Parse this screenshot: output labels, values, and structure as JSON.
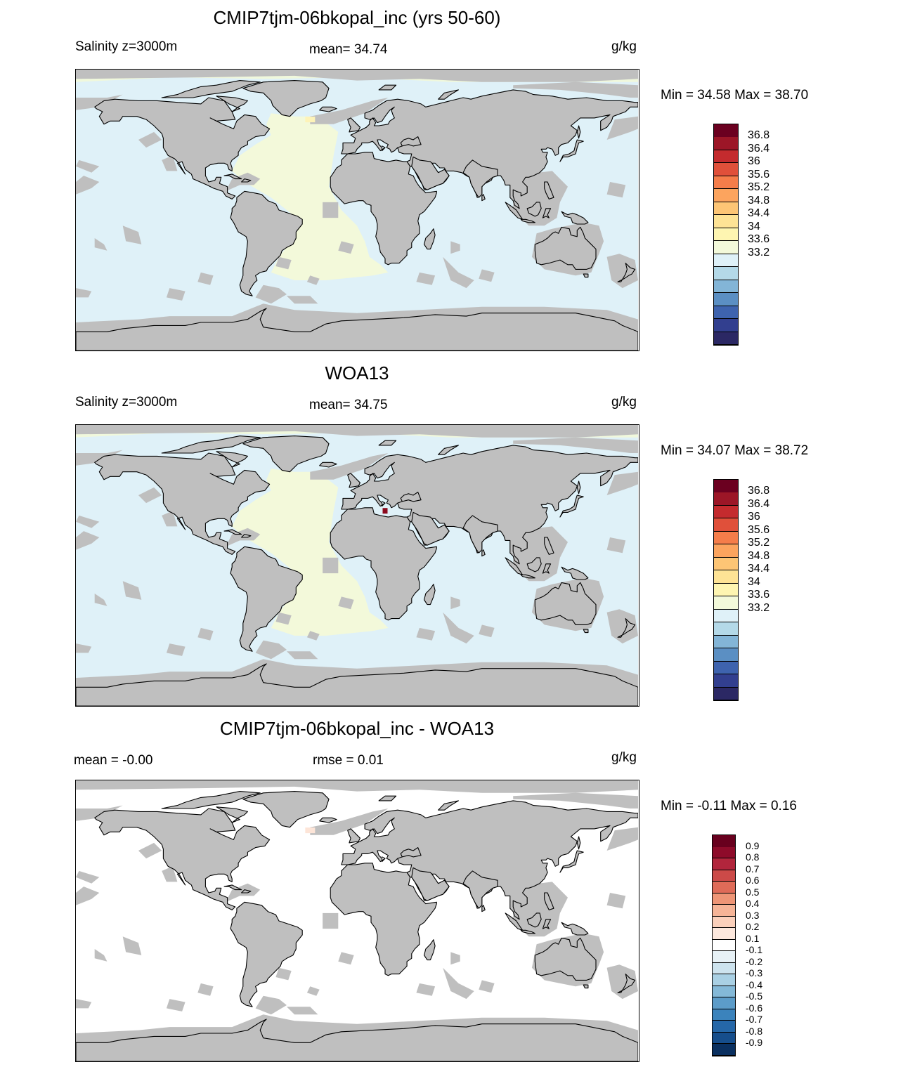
{
  "panels": [
    {
      "title": "CMIP7tjm-06bkopal_inc (yrs 50-60)",
      "left_text": "Salinity z=3000m",
      "center_text": "mean=  34.74",
      "units": "g/kg",
      "minmax": "Min =  34.58 Max =  38.70",
      "ocean_main_color": "#dff1f8",
      "atlantic_color": "#f3f9da",
      "arctic_color": "#f0f8dc",
      "hotspot_color": "#fdf3b8",
      "hotspot_name": "labrador-sea-high-salinity",
      "colorbar": {
        "colors": [
          "#2b2864",
          "#323f8f",
          "#3e63ae",
          "#5b8fc3",
          "#83b5d7",
          "#b4d9e8",
          "#dff1f8",
          "#f3f9da",
          "#fef5b1",
          "#fee395",
          "#fdc575",
          "#fca45e",
          "#f57d4a",
          "#e0503a",
          "#c42b2e",
          "#9c1627",
          "#6b0020"
        ],
        "labels": [
          "36.8",
          "36.4",
          "36",
          "35.6",
          "35.2",
          "34.8",
          "34.4",
          "34",
          "33.6",
          "33.2"
        ]
      }
    },
    {
      "title": "WOA13",
      "left_text": "Salinity z=3000m",
      "center_text": "mean=  34.75",
      "units": "g/kg",
      "minmax": "Min =  34.07 Max =  38.72",
      "ocean_main_color": "#dff1f8",
      "atlantic_color": "#f3f9da",
      "arctic_color": "#f0f8dc",
      "hotspot_color": "#8b0a1e",
      "hotspot_name": "mediterranean-high-salinity",
      "colorbar": {
        "colors": [
          "#2b2864",
          "#323f8f",
          "#3e63ae",
          "#5b8fc3",
          "#83b5d7",
          "#b4d9e8",
          "#dff1f8",
          "#f3f9da",
          "#fef5b1",
          "#fee395",
          "#fdc575",
          "#fca45e",
          "#f57d4a",
          "#e0503a",
          "#c42b2e",
          "#9c1627",
          "#6b0020"
        ],
        "labels": [
          "36.8",
          "36.4",
          "36",
          "35.6",
          "35.2",
          "34.8",
          "34.4",
          "34",
          "33.6",
          "33.2"
        ]
      }
    },
    {
      "title": "CMIP7tjm-06bkopal_inc - WOA13",
      "left_text": "mean =  -0.00",
      "center_text": "rmse =   0.01",
      "units": "g/kg",
      "minmax": "Min =  -0.11 Max =   0.16",
      "ocean_main_color": "#ffffff",
      "atlantic_color": "#ffffff",
      "arctic_color": "#ffffff",
      "hotspot_color": "#fde5d8",
      "hotspot_name": "labrador-sea-anomaly",
      "colorbar": {
        "colors": [
          "#0a3060",
          "#164e8c",
          "#2567a8",
          "#3b83bc",
          "#5c9cc9",
          "#84b9d8",
          "#a9d0e4",
          "#cde3ee",
          "#e7f1f6",
          "#ffffff",
          "#fde8dd",
          "#fbd0bb",
          "#f6b497",
          "#ee9576",
          "#df6b58",
          "#cc4a48",
          "#b2253c",
          "#8e0b2a",
          "#68001e"
        ],
        "labels": [
          "0.9",
          "0.8",
          "0.7",
          "0.6",
          "0.5",
          "0.4",
          "0.3",
          "0.2",
          "0.1",
          "-0.1",
          "-0.2",
          "-0.3",
          "-0.4",
          "-0.5",
          "-0.6",
          "-0.7",
          "-0.8",
          "-0.9"
        ]
      }
    }
  ],
  "land_color": "#bfbfbf",
  "coast_color": "#000000"
}
